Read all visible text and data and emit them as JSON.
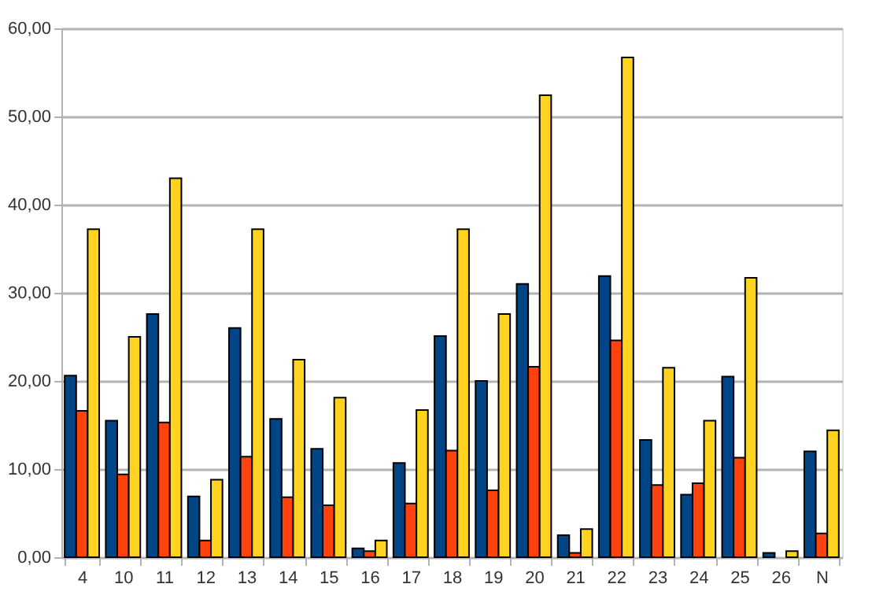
{
  "chart_data": {
    "type": "bar",
    "categories": [
      "4",
      "10",
      "11",
      "12",
      "13",
      "14",
      "15",
      "16",
      "17",
      "18",
      "19",
      "20",
      "21",
      "22",
      "23",
      "24",
      "25",
      "26",
      "N"
    ],
    "series": [
      {
        "color": "#004586",
        "values": [
          20.6,
          15.5,
          27.6,
          6.9,
          26.0,
          15.7,
          12.3,
          1.0,
          10.7,
          25.1,
          20.0,
          31.0,
          2.5,
          31.9,
          13.3,
          7.1,
          20.5,
          0.5,
          12.0
        ]
      },
      {
        "color": "#ff420e",
        "values": [
          16.6,
          9.4,
          15.3,
          1.9,
          11.4,
          6.8,
          5.9,
          0.7,
          6.1,
          12.1,
          7.6,
          21.6,
          0.5,
          24.6,
          8.2,
          8.4,
          11.3,
          null,
          2.7
        ]
      },
      {
        "color": "#ffd320",
        "values": [
          37.2,
          25.0,
          43.0,
          8.8,
          37.2,
          22.4,
          18.1,
          1.9,
          16.7,
          37.2,
          27.6,
          52.4,
          3.2,
          56.7,
          21.5,
          15.5,
          31.7,
          0.7,
          14.4
        ]
      }
    ],
    "ylim": [
      0,
      60
    ],
    "yticks": [
      {
        "value": 0,
        "label": "0,00"
      },
      {
        "value": 10,
        "label": "10,00"
      },
      {
        "value": 20,
        "label": "20,00"
      },
      {
        "value": 30,
        "label": "30,00"
      },
      {
        "value": 40,
        "label": "40,00"
      },
      {
        "value": 50,
        "label": "50,00"
      },
      {
        "value": 60,
        "label": "60,00"
      }
    ],
    "grid": "y",
    "legend": false
  }
}
